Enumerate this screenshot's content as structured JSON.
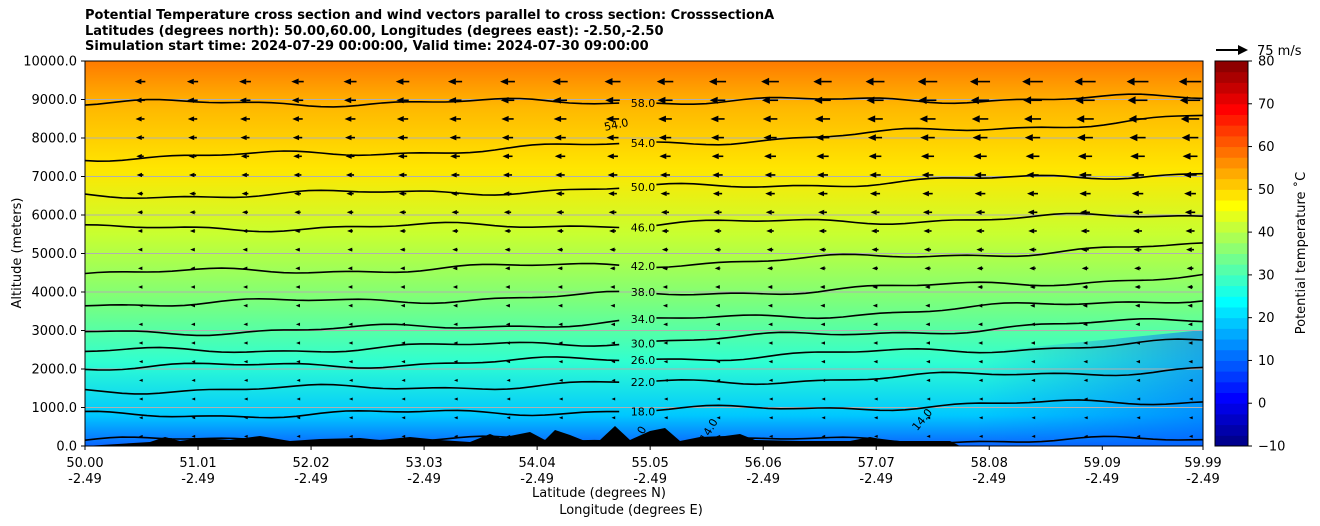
{
  "chart_data": {
    "type": "heatmap",
    "title_lines": [
      "Potential Temperature cross section and wind vectors parallel to cross section: CrosssectionA",
      "Latitudes (degrees north): 50.00,60.00, Longitudes (degrees east): -2.50,-2.50",
      "Simulation start time: 2024-07-29 00:00:00, Valid time: 2024-07-30 09:00:00"
    ],
    "xlabel_line1": "Latitude (degrees N)",
    "xlabel_line2": "Longitude (degrees E)",
    "ylabel": "Altitude (meters)",
    "x_ticks_lat": [
      "50.00",
      "51.01",
      "52.02",
      "53.03",
      "54.04",
      "55.05",
      "56.06",
      "57.07",
      "58.08",
      "59.09",
      "59.99"
    ],
    "x_ticks_lon": [
      "-2.49",
      "-2.49",
      "-2.49",
      "-2.49",
      "-2.49",
      "-2.49",
      "-2.49",
      "-2.49",
      "-2.49",
      "-2.49",
      "-2.49"
    ],
    "xlim": [
      50.0,
      59.99
    ],
    "y_ticks": [
      "0.0",
      "1000.0",
      "2000.0",
      "3000.0",
      "4000.0",
      "5000.0",
      "6000.0",
      "7000.0",
      "8000.0",
      "9000.0",
      "10000.0"
    ],
    "ylim": [
      0,
      10000
    ],
    "grid": "horizontal",
    "colorbar": {
      "label": "Potential temperature $^\\circ$C",
      "label_display": "Potential temperature ˚C",
      "ticks": [
        "−10",
        "0",
        "10",
        "20",
        "30",
        "40",
        "50",
        "60",
        "70",
        "80"
      ],
      "range": [
        -10,
        80
      ],
      "colormap": "jet"
    },
    "quiver_key": "75 m/s",
    "contours": [
      {
        "value": 14.0,
        "label": "14.0",
        "y_left": 150,
        "y_right": 150
      },
      {
        "value": 18.0,
        "label": "18.0",
        "y_left": 800,
        "y_right": 1180
      },
      {
        "value": 22.0,
        "label": "22.0",
        "y_left": 1450,
        "y_right": 2000
      },
      {
        "value": 26.0,
        "label": "26.0",
        "y_left": 2050,
        "y_right": 2700
      },
      {
        "value": 30.0,
        "label": "30.0",
        "y_left": 2450,
        "y_right": 3300
      },
      {
        "value": 34.0,
        "label": "34.0",
        "y_left": 2950,
        "y_right": 3850
      },
      {
        "value": 38.0,
        "label": "38.0",
        "y_left": 3700,
        "y_right": 4400
      },
      {
        "value": 42.0,
        "label": "42.0",
        "y_left": 4500,
        "y_right": 5200
      },
      {
        "value": 46.0,
        "label": "46.0",
        "y_left": 5650,
        "y_right": 6000
      },
      {
        "value": 50.0,
        "label": "50.0",
        "y_left": 6500,
        "y_right": 7100
      },
      {
        "value": 54.0,
        "label": "54.0",
        "y_left": 7500,
        "y_right": 8550
      },
      {
        "value": 58.0,
        "label": "58.0",
        "y_left": 8900,
        "y_right": 9050
      }
    ],
    "extra_labels": [
      "54.0",
      "0",
      "14.0",
      "14.0"
    ]
  }
}
